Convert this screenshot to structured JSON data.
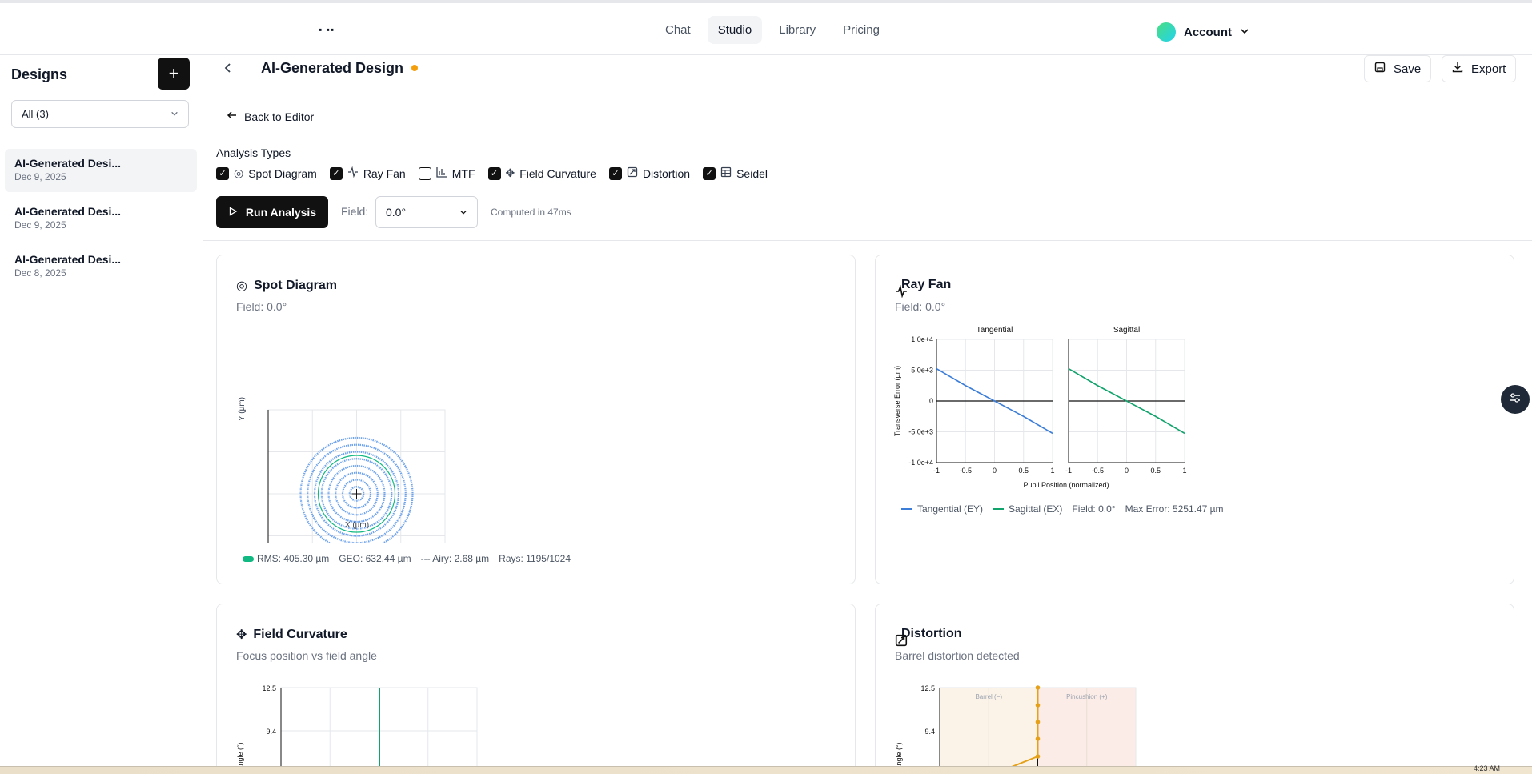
{
  "header": {
    "logo": "▪ ▪▪",
    "nav": [
      "Chat",
      "Studio",
      "Library",
      "Pricing"
    ],
    "active_nav": "Studio",
    "account_label": "Account"
  },
  "sidebar": {
    "title": "Designs",
    "add_label": "+",
    "filter_value": "All (3)",
    "items": [
      {
        "name": "AI-Generated Desi...",
        "date": "Dec 9, 2025"
      },
      {
        "name": "AI-Generated Desi...",
        "date": "Dec 9, 2025"
      },
      {
        "name": "AI-Generated Desi...",
        "date": "Dec 8, 2025"
      }
    ]
  },
  "main": {
    "title": "AI-Generated Design",
    "save_label": "Save",
    "export_label": "Export",
    "back_to_editor": "Back to Editor",
    "analysis_types_label": "Analysis Types",
    "analysis_types": [
      {
        "label": "Spot Diagram",
        "checked": true,
        "icon": "target-icon"
      },
      {
        "label": "Ray Fan",
        "checked": true,
        "icon": "activity-icon"
      },
      {
        "label": "MTF",
        "checked": false,
        "icon": "bar-chart-icon"
      },
      {
        "label": "Field Curvature",
        "checked": true,
        "icon": "move-icon"
      },
      {
        "label": "Distortion",
        "checked": true,
        "icon": "edit-box-icon"
      },
      {
        "label": "Seidel",
        "checked": true,
        "icon": "table-icon"
      }
    ],
    "run_label": "Run Analysis",
    "field_label": "Field:",
    "field_value": "0.0°",
    "computed": "Computed in 47ms"
  },
  "cards": {
    "spot": {
      "title": "Spot Diagram",
      "subtitle": "Field: 0.0°",
      "xlabel": "X (µm)",
      "ylabel": "Y (µm)",
      "rms": "RMS: 405.30 µm",
      "geo": "GEO: 632.44 µm",
      "airy": "--- Airy: 2.68 µm",
      "rays": "Rays: 1195/1024"
    },
    "rayfan": {
      "title": "Ray Fan",
      "subtitle": "Field: 0.0°",
      "legend_tan": "Tangential (EY)",
      "legend_sag": "Sagittal (EX)",
      "legend_field": "Field: 0.0°",
      "legend_max": "Max Error: 5251.47 µm"
    },
    "fieldcurv": {
      "title": "Field Curvature",
      "subtitle": "Focus position vs field angle"
    },
    "distortion": {
      "title": "Distortion",
      "subtitle": "Barrel distortion detected"
    }
  },
  "taskbar": {
    "time": "4:23 AM"
  },
  "colors": {
    "tangential": "#3b7dd8",
    "sagittal": "#10a36b",
    "distortion": "#e5a11a",
    "accent_dot": "#f59e0b"
  },
  "chart_data": [
    {
      "type": "scatter",
      "title": "Spot Diagram",
      "xlabel": "X (µm)",
      "ylabel": "Y (µm)",
      "rings": 8,
      "rms_um": 405.3,
      "geo_um": 632.44
    },
    {
      "type": "line",
      "title": "Tangential",
      "xlabel": "Pupil Position (normalized)",
      "ylabel": "Transverse Error (µm)",
      "xticks": [
        "-1",
        "-0.5",
        "0",
        "0.5",
        "1"
      ],
      "yticks": [
        "1.0e+4",
        "5.0e+3",
        "0",
        "-5.0e+3",
        "-1.0e+4"
      ],
      "xlim": [
        -1,
        1
      ],
      "ylim": [
        -10000,
        10000
      ],
      "series": [
        {
          "name": "Tangential (EY)",
          "x": [
            -1,
            -0.5,
            0,
            0.5,
            1
          ],
          "y": [
            5251,
            2500,
            0,
            -2500,
            -5251
          ]
        }
      ]
    },
    {
      "type": "line",
      "title": "Sagittal",
      "xticks": [
        "-1",
        "-0.5",
        "0",
        "0.5",
        "1"
      ],
      "xlim": [
        -1,
        1
      ],
      "ylim": [
        -10000,
        10000
      ],
      "series": [
        {
          "name": "Sagittal (EX)",
          "x": [
            -1,
            -0.5,
            0,
            0.5,
            1
          ],
          "y": [
            5251,
            2500,
            0,
            -2500,
            -5251
          ]
        }
      ]
    },
    {
      "type": "line",
      "title": "Field Curvature",
      "ylabel": "Angle (°)",
      "yticks": [
        "12.5",
        "9.4"
      ]
    },
    {
      "type": "line",
      "title": "Distortion",
      "ylabel": "Angle (°)",
      "yticks": [
        "12.5",
        "9.4"
      ],
      "annotations": [
        "Barrel (−)",
        "Pincushion (+)"
      ]
    }
  ]
}
